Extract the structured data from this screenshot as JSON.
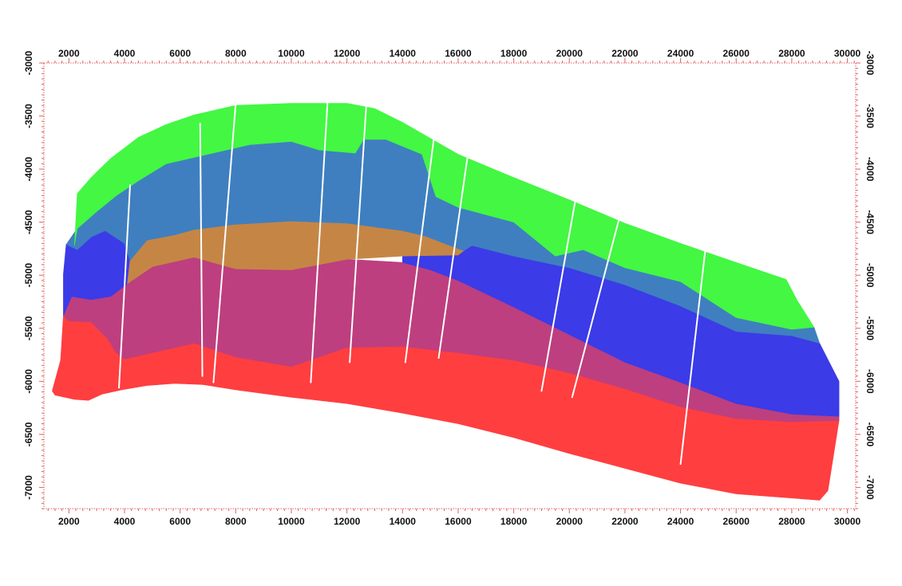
{
  "chart_data": {
    "type": "area",
    "title": "",
    "xlabel": "",
    "ylabel": "",
    "xlim": [
      1100,
      30300
    ],
    "ylim": [
      -7200,
      -3000
    ],
    "x_ticks": [
      2000,
      4000,
      6000,
      8000,
      10000,
      12000,
      14000,
      16000,
      18000,
      20000,
      22000,
      24000,
      26000,
      28000,
      30000
    ],
    "y_ticks": [
      -3000,
      -3500,
      -4000,
      -4500,
      -5000,
      -5500,
      -6000,
      -6500,
      -7000
    ],
    "x_tick_labels": [
      "2000",
      "4000",
      "6000",
      "8000",
      "10000",
      "12000",
      "14000",
      "16000",
      "18000",
      "20000",
      "22000",
      "24000",
      "26000",
      "28000",
      "30000"
    ],
    "y_tick_labels": [
      "-3000",
      "-3500",
      "-4000",
      "-4500",
      "-5000",
      "-5500",
      "-6000",
      "-6500",
      "-7000"
    ],
    "axes_on": [
      "top",
      "bottom",
      "left",
      "right"
    ],
    "grid": false,
    "frame_color": "#e06060",
    "series": [
      {
        "color": "#ff3e40",
        "points": [
          [
            1500,
            -6130
          ],
          [
            2200,
            -6170
          ],
          [
            2700,
            -6180
          ],
          [
            3200,
            -6120
          ],
          [
            3900,
            -6080
          ],
          [
            4800,
            -6040
          ],
          [
            5800,
            -6020
          ],
          [
            6800,
            -6030
          ],
          [
            8000,
            -6080
          ],
          [
            10000,
            -6150
          ],
          [
            12000,
            -6210
          ],
          [
            14000,
            -6300
          ],
          [
            16000,
            -6400
          ],
          [
            18000,
            -6530
          ],
          [
            20000,
            -6680
          ],
          [
            22000,
            -6820
          ],
          [
            24000,
            -6960
          ],
          [
            26000,
            -7060
          ],
          [
            28000,
            -7100
          ],
          [
            29000,
            -7120
          ],
          [
            29300,
            -7030
          ],
          [
            29700,
            -6370
          ],
          [
            28000,
            -6380
          ],
          [
            26000,
            -6350
          ],
          [
            24000,
            -6240
          ],
          [
            22000,
            -6070
          ],
          [
            20000,
            -5920
          ],
          [
            18000,
            -5800
          ],
          [
            16000,
            -5730
          ],
          [
            14000,
            -5670
          ],
          [
            12000,
            -5680
          ],
          [
            10000,
            -5860
          ],
          [
            8000,
            -5770
          ],
          [
            6500,
            -5640
          ],
          [
            5500,
            -5700
          ],
          [
            4000,
            -5790
          ],
          [
            3700,
            -5730
          ],
          [
            3400,
            -5600
          ],
          [
            2800,
            -5440
          ],
          [
            2000,
            -5430
          ],
          [
            1800,
            -5380
          ],
          [
            1700,
            -5800
          ],
          [
            1400,
            -6090
          ]
        ]
      },
      {
        "color": "#bd3f7f",
        "points": [
          [
            1800,
            -5380
          ],
          [
            2000,
            -5430
          ],
          [
            2800,
            -5440
          ],
          [
            3400,
            -5600
          ],
          [
            3700,
            -5730
          ],
          [
            4000,
            -5790
          ],
          [
            5500,
            -5700
          ],
          [
            6500,
            -5640
          ],
          [
            8000,
            -5770
          ],
          [
            10000,
            -5860
          ],
          [
            12000,
            -5680
          ],
          [
            14000,
            -5670
          ],
          [
            16000,
            -5730
          ],
          [
            18000,
            -5800
          ],
          [
            20000,
            -5920
          ],
          [
            22000,
            -6070
          ],
          [
            24000,
            -6240
          ],
          [
            26000,
            -6350
          ],
          [
            28000,
            -6380
          ],
          [
            29700,
            -6370
          ],
          [
            29700,
            -6330
          ],
          [
            28000,
            -6310
          ],
          [
            26000,
            -6210
          ],
          [
            24000,
            -6010
          ],
          [
            22000,
            -5820
          ],
          [
            20000,
            -5560
          ],
          [
            18000,
            -5300
          ],
          [
            16000,
            -5050
          ],
          [
            15000,
            -4950
          ],
          [
            14000,
            -4880
          ],
          [
            12000,
            -4850
          ],
          [
            10000,
            -4950
          ],
          [
            8000,
            -4940
          ],
          [
            6500,
            -4830
          ],
          [
            5000,
            -4920
          ],
          [
            4100,
            -5080
          ],
          [
            3500,
            -5200
          ],
          [
            2800,
            -5230
          ],
          [
            2100,
            -5200
          ]
        ]
      },
      {
        "color": "#3b3be8",
        "points": [
          [
            1800,
            -5380
          ],
          [
            2100,
            -5200
          ],
          [
            2800,
            -5230
          ],
          [
            3500,
            -5200
          ],
          [
            4100,
            -5080
          ],
          [
            4200,
            -4860
          ],
          [
            4000,
            -4700
          ],
          [
            3300,
            -4580
          ],
          [
            2800,
            -4640
          ],
          [
            2300,
            -4760
          ],
          [
            1900,
            -4710
          ],
          [
            1800,
            -4990
          ]
        ]
      },
      {
        "color": "#3b3be8",
        "points": [
          [
            14000,
            -4880
          ],
          [
            15000,
            -4950
          ],
          [
            16000,
            -5050
          ],
          [
            18000,
            -5300
          ],
          [
            20000,
            -5560
          ],
          [
            22000,
            -5820
          ],
          [
            24000,
            -6010
          ],
          [
            26000,
            -6210
          ],
          [
            28000,
            -6310
          ],
          [
            29700,
            -6330
          ],
          [
            29700,
            -6000
          ],
          [
            29000,
            -5640
          ],
          [
            28000,
            -5570
          ],
          [
            26000,
            -5530
          ],
          [
            24000,
            -5290
          ],
          [
            22000,
            -5090
          ],
          [
            20000,
            -4930
          ],
          [
            18000,
            -4820
          ],
          [
            16500,
            -4720
          ],
          [
            16000,
            -4810
          ],
          [
            14000,
            -4820
          ]
        ]
      },
      {
        "color": "#c58645",
        "points": [
          [
            4100,
            -5080
          ],
          [
            5000,
            -4920
          ],
          [
            6500,
            -4830
          ],
          [
            8000,
            -4940
          ],
          [
            10000,
            -4950
          ],
          [
            12000,
            -4850
          ],
          [
            14000,
            -4820
          ],
          [
            16000,
            -4810
          ],
          [
            16200,
            -4770
          ],
          [
            14800,
            -4630
          ],
          [
            14000,
            -4580
          ],
          [
            12000,
            -4510
          ],
          [
            10000,
            -4490
          ],
          [
            8000,
            -4520
          ],
          [
            6500,
            -4570
          ],
          [
            5800,
            -4620
          ],
          [
            4800,
            -4670
          ],
          [
            4200,
            -4860
          ]
        ]
      },
      {
        "color": "#3f7fbf",
        "points": [
          [
            1900,
            -4710
          ],
          [
            2300,
            -4760
          ],
          [
            2800,
            -4640
          ],
          [
            3300,
            -4580
          ],
          [
            4000,
            -4700
          ],
          [
            4200,
            -4860
          ],
          [
            4800,
            -4670
          ],
          [
            5800,
            -4620
          ],
          [
            6500,
            -4570
          ],
          [
            8000,
            -4520
          ],
          [
            10000,
            -4490
          ],
          [
            12000,
            -4510
          ],
          [
            14000,
            -4580
          ],
          [
            14800,
            -4630
          ],
          [
            16200,
            -4770
          ],
          [
            16500,
            -4720
          ],
          [
            18000,
            -4820
          ],
          [
            20000,
            -4930
          ],
          [
            22000,
            -5090
          ],
          [
            24000,
            -5290
          ],
          [
            26000,
            -5530
          ],
          [
            28000,
            -5570
          ],
          [
            29000,
            -5640
          ],
          [
            28800,
            -5490
          ],
          [
            28000,
            -5510
          ],
          [
            26000,
            -5400
          ],
          [
            24000,
            -5060
          ],
          [
            22000,
            -4930
          ],
          [
            20500,
            -4760
          ],
          [
            19500,
            -4820
          ],
          [
            18000,
            -4500
          ],
          [
            16000,
            -4360
          ],
          [
            15200,
            -4260
          ],
          [
            14700,
            -3860
          ],
          [
            13400,
            -3720
          ],
          [
            12600,
            -3720
          ],
          [
            12300,
            -3850
          ],
          [
            11000,
            -3820
          ],
          [
            10000,
            -3740
          ],
          [
            8500,
            -3770
          ],
          [
            7500,
            -3830
          ],
          [
            5500,
            -3950
          ],
          [
            4500,
            -4110
          ],
          [
            3700,
            -4250
          ],
          [
            3000,
            -4400
          ],
          [
            2300,
            -4560
          ]
        ]
      },
      {
        "color": "#43f743",
        "points": [
          [
            2200,
            -4720
          ],
          [
            2300,
            -4560
          ],
          [
            3000,
            -4400
          ],
          [
            3700,
            -4250
          ],
          [
            4500,
            -4110
          ],
          [
            5500,
            -3950
          ],
          [
            7500,
            -3830
          ],
          [
            8500,
            -3770
          ],
          [
            10000,
            -3740
          ],
          [
            11000,
            -3820
          ],
          [
            12300,
            -3850
          ],
          [
            12600,
            -3720
          ],
          [
            13400,
            -3720
          ],
          [
            14700,
            -3860
          ],
          [
            15200,
            -4260
          ],
          [
            16000,
            -4360
          ],
          [
            18000,
            -4500
          ],
          [
            19500,
            -4820
          ],
          [
            20500,
            -4760
          ],
          [
            22000,
            -4930
          ],
          [
            24000,
            -5060
          ],
          [
            26000,
            -5400
          ],
          [
            28000,
            -5510
          ],
          [
            28800,
            -5490
          ],
          [
            28200,
            -5240
          ],
          [
            27800,
            -5040
          ],
          [
            26000,
            -4880
          ],
          [
            24000,
            -4700
          ],
          [
            22000,
            -4510
          ],
          [
            20000,
            -4290
          ],
          [
            18000,
            -4080
          ],
          [
            16000,
            -3860
          ],
          [
            14000,
            -3560
          ],
          [
            13000,
            -3430
          ],
          [
            12000,
            -3380
          ],
          [
            10000,
            -3380
          ],
          [
            8000,
            -3400
          ],
          [
            6500,
            -3490
          ],
          [
            5500,
            -3580
          ],
          [
            4500,
            -3700
          ],
          [
            3500,
            -3900
          ],
          [
            2800,
            -4080
          ],
          [
            2300,
            -4230
          ]
        ]
      }
    ],
    "fault_lines": [
      [
        [
          3800,
          -6060
        ],
        [
          4200,
          -4150
        ]
      ],
      [
        [
          6800,
          -5950
        ],
        [
          6720,
          -3570
        ]
      ],
      [
        [
          7200,
          -6010
        ],
        [
          8000,
          -3380
        ]
      ],
      [
        [
          10700,
          -6010
        ],
        [
          11300,
          -3380
        ]
      ],
      [
        [
          12100,
          -5820
        ],
        [
          12700,
          -3380
        ]
      ],
      [
        [
          14100,
          -5820
        ],
        [
          15200,
          -3560
        ]
      ],
      [
        [
          15300,
          -5780
        ],
        [
          16400,
          -3770
        ]
      ],
      [
        [
          19000,
          -6090
        ],
        [
          20300,
          -4170
        ]
      ],
      [
        [
          20100,
          -6150
        ],
        [
          21900,
          -4360
        ]
      ],
      [
        [
          24000,
          -6780
        ],
        [
          24900,
          -4740
        ]
      ]
    ]
  }
}
